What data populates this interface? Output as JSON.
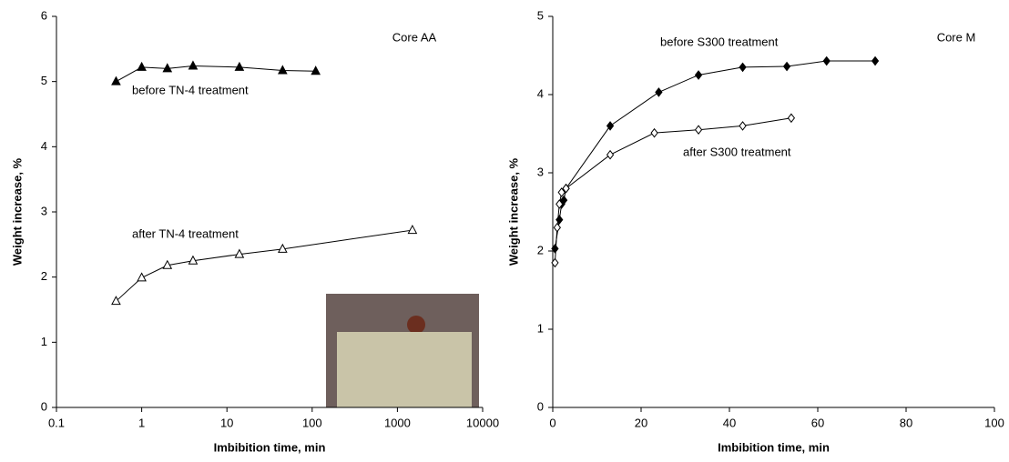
{
  "chart_data": [
    {
      "type": "line",
      "xscale": "log",
      "annotation": "Core AA",
      "x_label": "Imbibition time, min",
      "y_label": "Weight increase, %",
      "xlim": [
        0.1,
        10000
      ],
      "xticks": [
        0.1,
        1,
        10,
        100,
        1000,
        10000
      ],
      "ylim": [
        0,
        6
      ],
      "yticks": [
        0,
        1,
        2,
        3,
        4,
        5,
        6
      ],
      "series": [
        {
          "name": "before TN-4 treatment",
          "color": "#000000",
          "marker": "triangle",
          "filled": true,
          "x": [
            0.5,
            1,
            2,
            4,
            14,
            45,
            110
          ],
          "values": [
            5.0,
            5.22,
            5.2,
            5.24,
            5.22,
            5.17,
            5.16
          ]
        },
        {
          "name": "after TN-4 treatment",
          "color": "#000000",
          "marker": "triangle",
          "filled": false,
          "x": [
            0.5,
            1,
            2,
            4,
            14,
            45,
            1500
          ],
          "values": [
            1.63,
            1.99,
            2.18,
            2.25,
            2.35,
            2.43,
            2.72
          ]
        }
      ]
    },
    {
      "type": "line",
      "xscale": "linear",
      "annotation": "Core M",
      "x_label": "Imbibition time, min",
      "y_label": "Weight increase, %",
      "xlim": [
        0,
        100
      ],
      "xticks": [
        0,
        20,
        40,
        60,
        80,
        100
      ],
      "ylim": [
        0,
        5
      ],
      "yticks": [
        0,
        1,
        2,
        3,
        4,
        5
      ],
      "series": [
        {
          "name": "before S300 treatment",
          "color": "#000000",
          "marker": "diamond",
          "filled": true,
          "x": [
            0.5,
            1.5,
            2,
            2.5,
            3,
            13,
            24,
            33,
            43,
            53,
            62,
            73
          ],
          "values": [
            2.03,
            2.4,
            2.6,
            2.65,
            2.8,
            3.6,
            4.03,
            4.25,
            4.35,
            4.36,
            4.43,
            4.43
          ]
        },
        {
          "name": "after S300 treatment",
          "color": "#000000",
          "marker": "diamond",
          "filled": false,
          "x": [
            0.5,
            1,
            1.5,
            2,
            3,
            13,
            23,
            33,
            43,
            54
          ],
          "values": [
            1.85,
            2.3,
            2.6,
            2.75,
            2.8,
            3.23,
            3.51,
            3.55,
            3.6,
            3.7
          ]
        }
      ]
    }
  ]
}
